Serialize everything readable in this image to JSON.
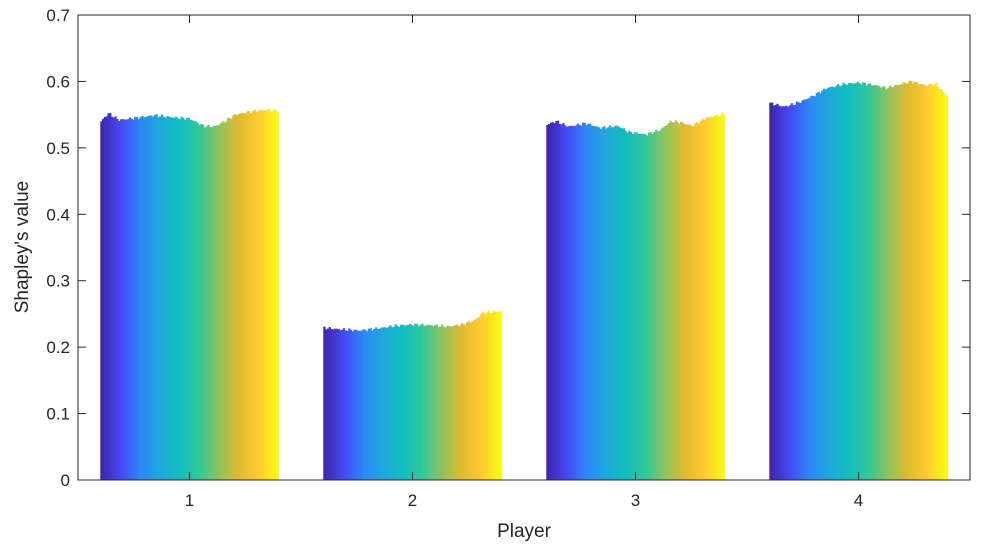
{
  "chart_data": {
    "type": "bar",
    "title": "",
    "xlabel": "Player",
    "ylabel": "Shapley's value",
    "categories": [
      "1",
      "2",
      "3",
      "4"
    ],
    "ylim": [
      0,
      0.7
    ],
    "yticks": [
      "0",
      "0.1",
      "0.2",
      "0.3",
      "0.4",
      "0.5",
      "0.6",
      "0.7"
    ],
    "grid": false,
    "legend": "none",
    "bars_per_group": 100,
    "colormap": [
      "#3e26a8",
      "#4748f5",
      "#2e87f7",
      "#1fa8db",
      "#12bec0",
      "#31c69b",
      "#8cc462",
      "#dfba30",
      "#feca31",
      "#f9fb0e"
    ],
    "series_profiles": [
      {
        "category": "1",
        "start": 0.54,
        "end": 0.556,
        "profile": [
          [
            0,
            0.54
          ],
          [
            0.04,
            0.552
          ],
          [
            0.1,
            0.542
          ],
          [
            0.2,
            0.545
          ],
          [
            0.3,
            0.549
          ],
          [
            0.4,
            0.546
          ],
          [
            0.5,
            0.544
          ],
          [
            0.58,
            0.533
          ],
          [
            0.64,
            0.532
          ],
          [
            0.7,
            0.54
          ],
          [
            0.76,
            0.55
          ],
          [
            0.85,
            0.555
          ],
          [
            0.92,
            0.557
          ],
          [
            1.0,
            0.556
          ]
        ]
      },
      {
        "category": "2",
        "start": 0.229,
        "end": 0.254,
        "profile": [
          [
            0,
            0.229
          ],
          [
            0.08,
            0.227
          ],
          [
            0.2,
            0.225
          ],
          [
            0.3,
            0.228
          ],
          [
            0.4,
            0.232
          ],
          [
            0.5,
            0.234
          ],
          [
            0.6,
            0.233
          ],
          [
            0.7,
            0.231
          ],
          [
            0.78,
            0.234
          ],
          [
            0.85,
            0.24
          ],
          [
            0.9,
            0.252
          ],
          [
            1.0,
            0.254
          ]
        ]
      },
      {
        "category": "3",
        "start": 0.535,
        "end": 0.551,
        "profile": [
          [
            0,
            0.535
          ],
          [
            0.05,
            0.54
          ],
          [
            0.12,
            0.532
          ],
          [
            0.22,
            0.537
          ],
          [
            0.3,
            0.53
          ],
          [
            0.4,
            0.533
          ],
          [
            0.46,
            0.524
          ],
          [
            0.56,
            0.52
          ],
          [
            0.64,
            0.527
          ],
          [
            0.7,
            0.54
          ],
          [
            0.76,
            0.538
          ],
          [
            0.82,
            0.533
          ],
          [
            0.9,
            0.545
          ],
          [
            1.0,
            0.551
          ]
        ]
      },
      {
        "category": "4",
        "start": 0.567,
        "end": 0.578,
        "profile": [
          [
            0,
            0.567
          ],
          [
            0.08,
            0.562
          ],
          [
            0.16,
            0.568
          ],
          [
            0.24,
            0.578
          ],
          [
            0.32,
            0.59
          ],
          [
            0.42,
            0.596
          ],
          [
            0.5,
            0.598
          ],
          [
            0.6,
            0.594
          ],
          [
            0.66,
            0.59
          ],
          [
            0.74,
            0.596
          ],
          [
            0.8,
            0.6
          ],
          [
            0.88,
            0.594
          ],
          [
            0.94,
            0.596
          ],
          [
            1.0,
            0.578
          ]
        ]
      }
    ]
  }
}
